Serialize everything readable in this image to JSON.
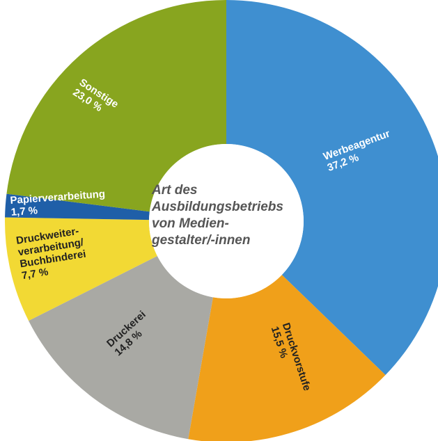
{
  "chart_data": {
    "type": "donut",
    "title": "Art des\nAusbildungsbetriebs\nvon Medien-\ngestalter/-innen",
    "categories": [
      "Werbeagentur",
      "Druckvorstufe",
      "Druckerei",
      "Druckweiter-\nverarbeitung/\nBuchbinderei",
      "Papierverarbeitung",
      "Sonstige"
    ],
    "values": [
      37.2,
      15.5,
      14.8,
      7.7,
      1.7,
      23.0
    ],
    "value_labels": [
      "37,2 %",
      "15,5 %",
      "14,8 %",
      "7,7 %",
      "1,7 %",
      "23,0 %"
    ],
    "colors": [
      "#3f8fd0",
      "#f0a01a",
      "#a9a9a4",
      "#f2d934",
      "#1f5fa8",
      "#88a51f"
    ],
    "label_colors": [
      "#ffffff",
      "#222222",
      "#222222",
      "#222222",
      "#ffffff",
      "#ffffff"
    ]
  }
}
